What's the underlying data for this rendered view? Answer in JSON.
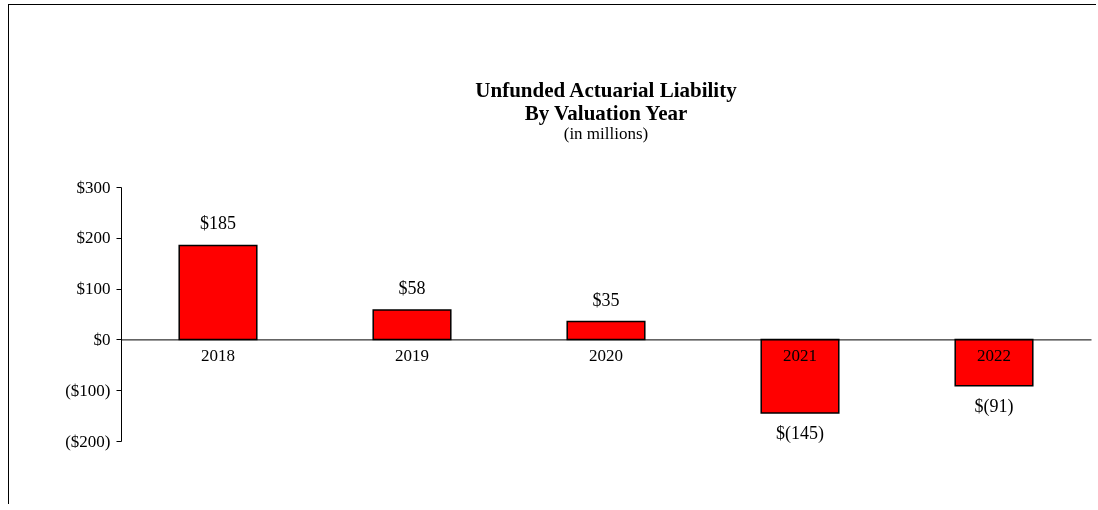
{
  "chart_data": {
    "type": "bar",
    "title": "Unfunded Actuarial Liability\nBy Valuation Year",
    "subtitle": "(in millions)",
    "categories": [
      "2018",
      "2019",
      "2020",
      "2021",
      "2022"
    ],
    "values": [
      185,
      58,
      35,
      -145,
      -91
    ],
    "value_labels": [
      "$185",
      "$58",
      "$35",
      "$(145)",
      "$(91)"
    ],
    "color": "#ff0000",
    "ylim": [
      -200,
      300
    ],
    "yticks": [
      {
        "value": -200,
        "label": "($200)"
      },
      {
        "value": -100,
        "label": "($100)"
      },
      {
        "value": 0,
        "label": "$0"
      },
      {
        "value": 100,
        "label": "$100"
      },
      {
        "value": 200,
        "label": "$200"
      },
      {
        "value": 300,
        "label": "$300"
      }
    ],
    "grid": false
  }
}
